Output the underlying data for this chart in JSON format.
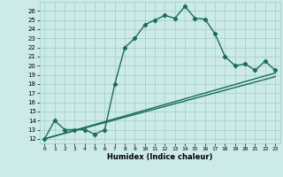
{
  "title": "",
  "xlabel": "Humidex (Indice chaleur)",
  "background_color": "#cceae8",
  "line_color": "#1a6b5e",
  "xlim": [
    -0.5,
    23.5
  ],
  "ylim": [
    11.5,
    27.0
  ],
  "xticks": [
    0,
    1,
    2,
    3,
    4,
    5,
    6,
    7,
    8,
    9,
    10,
    11,
    12,
    13,
    14,
    15,
    16,
    17,
    18,
    19,
    20,
    21,
    22,
    23
  ],
  "yticks": [
    12,
    13,
    14,
    15,
    16,
    17,
    18,
    19,
    20,
    21,
    22,
    23,
    24,
    25,
    26
  ],
  "main_series": [
    [
      0,
      12
    ],
    [
      1,
      14
    ],
    [
      2,
      13
    ],
    [
      3,
      13
    ],
    [
      4,
      13
    ],
    [
      5,
      12.5
    ],
    [
      6,
      13
    ],
    [
      7,
      18
    ],
    [
      8,
      22
    ],
    [
      9,
      23
    ],
    [
      10,
      24.5
    ],
    [
      11,
      25
    ],
    [
      12,
      25.5
    ],
    [
      13,
      25.2
    ],
    [
      14,
      26.5
    ],
    [
      15,
      25.2
    ],
    [
      16,
      25.1
    ],
    [
      17,
      23.5
    ],
    [
      18,
      21
    ],
    [
      19,
      20
    ],
    [
      20,
      20.2
    ],
    [
      21,
      19.5
    ],
    [
      22,
      20.5
    ],
    [
      23,
      19.5
    ]
  ],
  "line1": [
    [
      0,
      12
    ],
    [
      23,
      19.2
    ]
  ],
  "line2": [
    [
      0,
      12
    ],
    [
      23,
      18.8
    ]
  ],
  "grid_color": "#a0ccc8",
  "marker": "D",
  "marker_size": 2.2,
  "linewidth": 1.0
}
